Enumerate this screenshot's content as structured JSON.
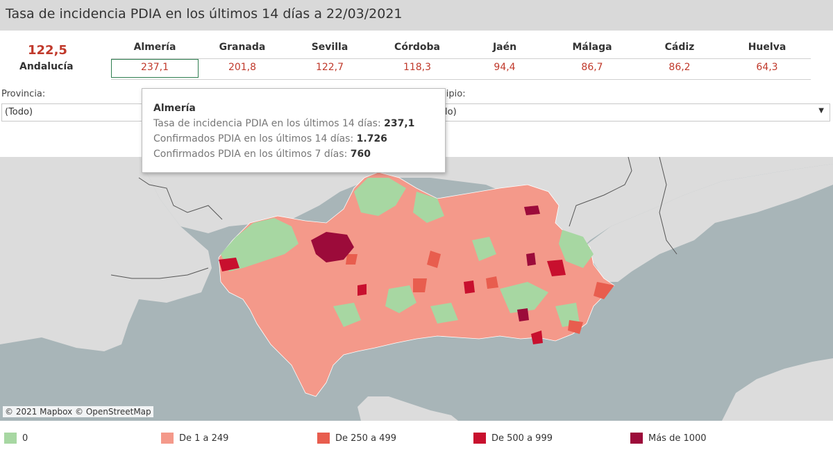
{
  "title": "Tasa de incidencia PDIA en los últimos 14 días a 22/03/2021",
  "summary": {
    "value": "122,5",
    "label": "Andalucía"
  },
  "provinces": [
    {
      "name": "Almería",
      "value": "237,1",
      "selected": true
    },
    {
      "name": "Granada",
      "value": "201,8"
    },
    {
      "name": "Sevilla",
      "value": "122,7"
    },
    {
      "name": "Córdoba",
      "value": "118,3"
    },
    {
      "name": "Jaén",
      "value": "94,4"
    },
    {
      "name": "Málaga",
      "value": "86,7"
    },
    {
      "name": "Cádiz",
      "value": "86,2"
    },
    {
      "name": "Huelva",
      "value": "64,3"
    }
  ],
  "filters": {
    "provincia": {
      "label": "Provincia:",
      "value": "(Todo)"
    },
    "municipio": {
      "label_visible": "icipio:",
      "value_visible": "lo)"
    }
  },
  "tooltip": {
    "title": "Almería",
    "rows": [
      {
        "label": "Tasa de incidencia PDIA en los últimos 14 días: ",
        "value": "237,1"
      },
      {
        "label": "Confirmados PDIA en los últimos 14 días: ",
        "value": "1.726"
      },
      {
        "label": "Confirmados PDIA en los últimos 7 días: ",
        "value": "760"
      }
    ]
  },
  "map": {
    "attribution": "© 2021 Mapbox © OpenStreetMap"
  },
  "legend": [
    {
      "label": "0",
      "color": "#a7d7a2"
    },
    {
      "label": "De 1 a 249",
      "color": "#f4998a"
    },
    {
      "label": "De 250 a 499",
      "color": "#e85d4e"
    },
    {
      "label": "De 500 a 999",
      "color": "#c8102e"
    },
    {
      "label": "Más de 1000",
      "color": "#9c0b3a"
    }
  ],
  "colors": {
    "accent": "#c0392b",
    "selected_border": "#2e7d4f",
    "sea": "#a8b5b8",
    "land": "#dcdcdc"
  }
}
